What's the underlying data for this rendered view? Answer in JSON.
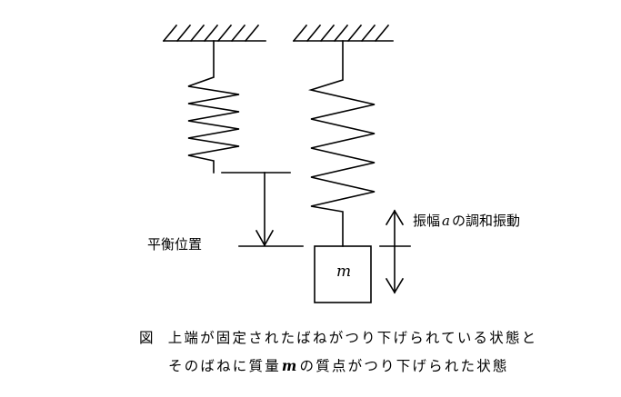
{
  "labels": {
    "equilibrium": "平衡位置",
    "amplitude_prefix": "振幅",
    "amplitude_symbol": "a",
    "amplitude_suffix": "の調和振動",
    "mass_symbol": "m"
  },
  "caption": {
    "fig_label": "図",
    "line1": "上端が固定されたばねがつり下げられている状態と",
    "line2_a": "そのばねに質量",
    "line2_symbol": "m",
    "line2_b": "の質点がつり下げられた状態"
  }
}
